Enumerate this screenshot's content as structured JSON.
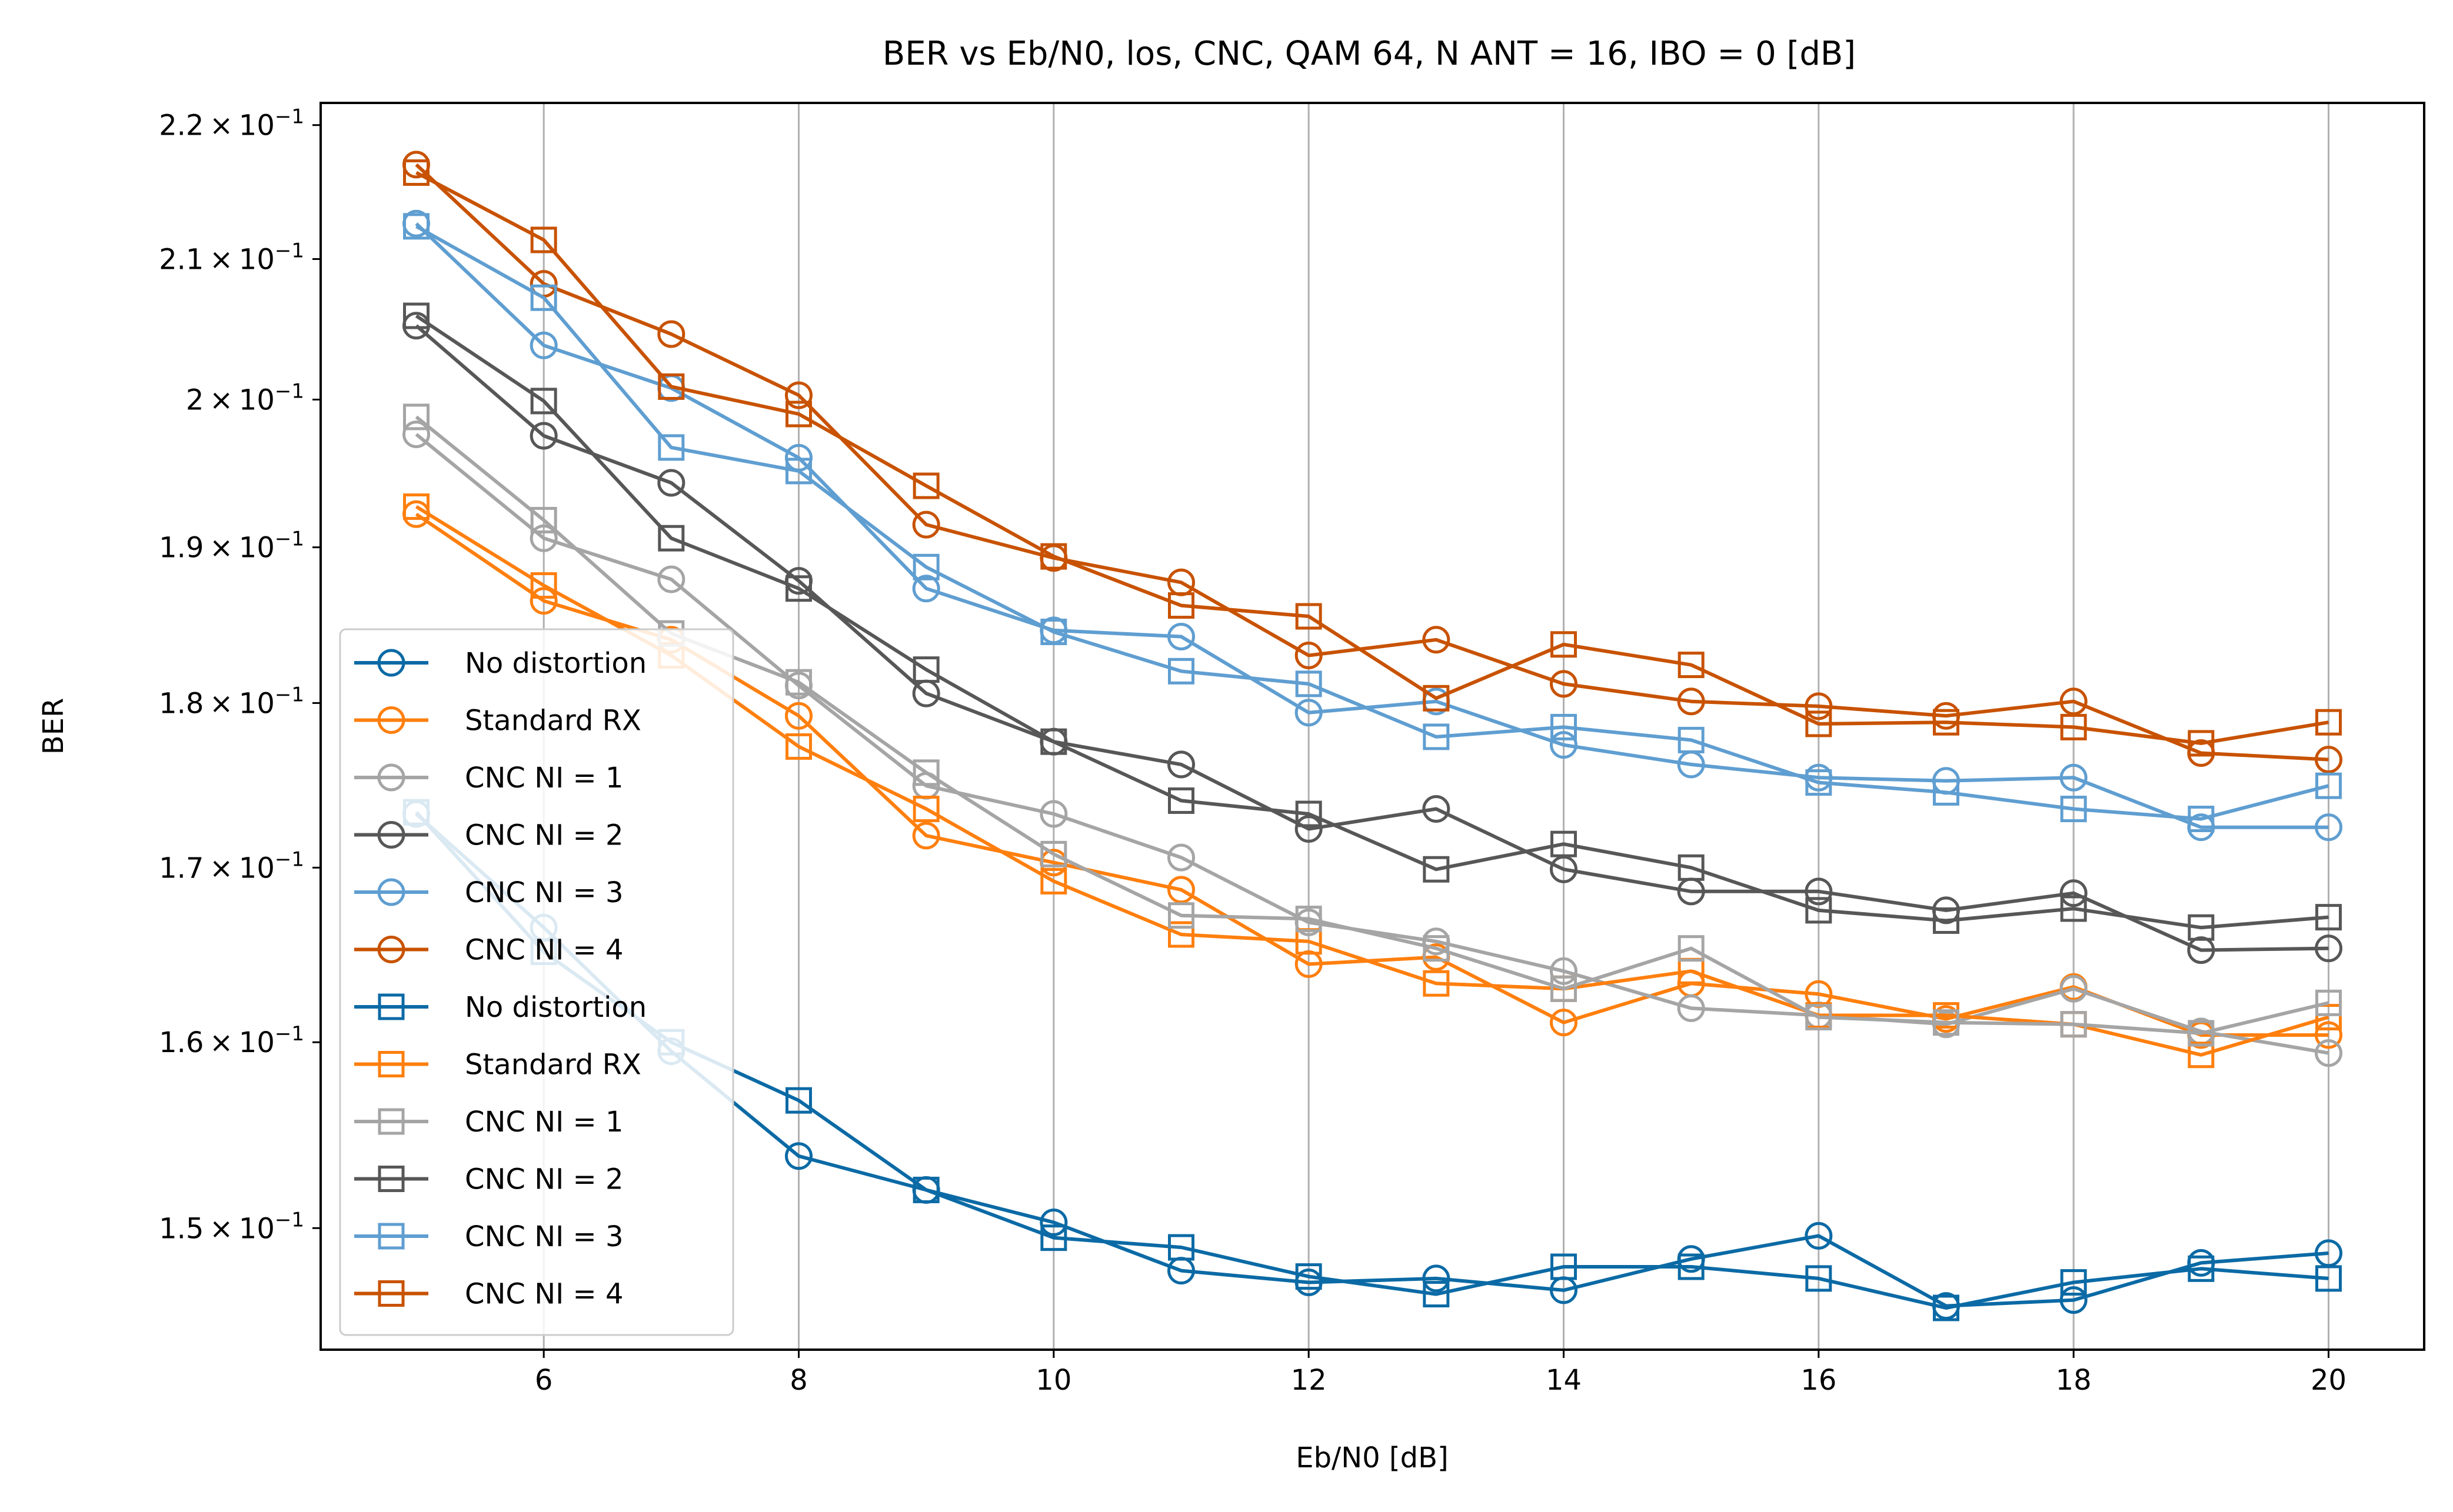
{
  "chart_data": {
    "type": "line",
    "title": "BER vs Eb/N0, los, CNC, QAM 64, N ANT = 16, IBO = 0 [dB]",
    "xlabel": "Eb/N0 [dB]",
    "ylabel": "BER",
    "y_scale": "log",
    "xlim": [
      4.25,
      20.75
    ],
    "ylim": [
      0.1438,
      0.2217
    ],
    "x_ticks": [
      6,
      8,
      10,
      12,
      14,
      16,
      18,
      20
    ],
    "x_tick_labels": [
      "6",
      "8",
      "10",
      "12",
      "14",
      "16",
      "18",
      "20"
    ],
    "y_ticks": [
      0.15,
      0.16,
      0.17,
      0.18,
      0.19,
      0.2,
      0.21,
      0.22
    ],
    "y_tick_labels": [
      {
        "mantissa": "1.5",
        "exp": "−1"
      },
      {
        "mantissa": "1.6",
        "exp": "−1"
      },
      {
        "mantissa": "1.7",
        "exp": "−1"
      },
      {
        "mantissa": "1.8",
        "exp": "−1"
      },
      {
        "mantissa": "1.9",
        "exp": "−1"
      },
      {
        "mantissa": "2",
        "exp": "−1"
      },
      {
        "mantissa": "2.1",
        "exp": "−1"
      },
      {
        "mantissa": "2.2",
        "exp": "−1"
      }
    ],
    "times_sign": "×",
    "base": "10",
    "grid": "vertical",
    "legend_position": "lower-left",
    "x": [
      5,
      6,
      7,
      8,
      9,
      10,
      11,
      12,
      13,
      14,
      15,
      16,
      17,
      18,
      19,
      20
    ],
    "series": [
      {
        "name": "No distortion",
        "marker": "circle",
        "color": "#0b6aa5",
        "values": [
          0.1732,
          0.1665,
          0.1595,
          0.1538,
          0.152,
          0.1503,
          0.1478,
          0.1472,
          0.1474,
          0.1468,
          0.1484,
          0.1496,
          0.146,
          0.1463,
          0.1482,
          0.1487
        ]
      },
      {
        "name": "Standard RX",
        "marker": "circle",
        "color": "#ff7f0e",
        "values": [
          0.1922,
          0.1865,
          0.184,
          0.1792,
          0.1719,
          0.1703,
          0.1687,
          0.1644,
          0.1648,
          0.1611,
          0.1633,
          0.1627,
          0.1613,
          0.1631,
          0.1604,
          0.1604
        ]
      },
      {
        "name": "CNC NI = 1",
        "marker": "circle",
        "color": "#a5a5a5",
        "values": [
          0.1976,
          0.1906,
          0.1879,
          0.1811,
          0.1749,
          0.1732,
          0.1706,
          0.1668,
          0.1657,
          0.164,
          0.1619,
          0.1615,
          0.161,
          0.163,
          0.1606,
          0.1594
        ]
      },
      {
        "name": "CNC NI = 2",
        "marker": "circle",
        "color": "#575757",
        "values": [
          0.2052,
          0.1975,
          0.1943,
          0.1878,
          0.1806,
          0.1776,
          0.1762,
          0.1723,
          0.1735,
          0.1699,
          0.1686,
          0.1686,
          0.1675,
          0.1685,
          0.1652,
          0.1653
        ]
      },
      {
        "name": "CNC NI = 3",
        "marker": "circle",
        "color": "#5f9ed1",
        "values": [
          0.2126,
          0.2038,
          0.2008,
          0.196,
          0.1873,
          0.1846,
          0.1842,
          0.1794,
          0.1801,
          0.1774,
          0.1762,
          0.1754,
          0.1752,
          0.1754,
          0.1724,
          0.1724
        ]
      },
      {
        "name": "CNC NI = 4",
        "marker": "circle",
        "color": "#c85200",
        "values": [
          0.217,
          0.2082,
          0.2046,
          0.2003,
          0.1915,
          0.1893,
          0.1877,
          0.183,
          0.184,
          0.1812,
          0.1801,
          0.1798,
          0.1792,
          0.1801,
          0.1769,
          0.1765
        ]
      },
      {
        "name": "No distortion",
        "marker": "square",
        "color": "#0b6aa5",
        "values": [
          0.1733,
          0.1651,
          0.16,
          0.1568,
          0.152,
          0.1495,
          0.149,
          0.1475,
          0.1466,
          0.148,
          0.148,
          0.1474,
          0.1459,
          0.1472,
          0.1479,
          0.1474
        ]
      },
      {
        "name": "Standard RX",
        "marker": "square",
        "color": "#ff7f0e",
        "values": [
          0.1927,
          0.1875,
          0.183,
          0.1773,
          0.1735,
          0.1692,
          0.1661,
          0.1657,
          0.1633,
          0.163,
          0.164,
          0.1615,
          0.1615,
          0.161,
          0.1593,
          0.1614
        ]
      },
      {
        "name": "CNC NI = 1",
        "marker": "square",
        "color": "#a5a5a5",
        "values": [
          0.1988,
          0.1918,
          0.1844,
          0.1813,
          0.1757,
          0.1708,
          0.1672,
          0.167,
          0.1653,
          0.163,
          0.1653,
          0.1614,
          0.1611,
          0.161,
          0.1605,
          0.1622
        ]
      },
      {
        "name": "CNC NI = 2",
        "marker": "square",
        "color": "#575757",
        "values": [
          0.2059,
          0.1999,
          0.1906,
          0.1873,
          0.1821,
          0.1776,
          0.174,
          0.1732,
          0.1699,
          0.1714,
          0.17,
          0.1675,
          0.1669,
          0.1676,
          0.1665,
          0.1671
        ]
      },
      {
        "name": "CNC NI = 3",
        "marker": "square",
        "color": "#5f9ed1",
        "values": [
          0.2124,
          0.2072,
          0.1967,
          0.1951,
          0.1887,
          0.1845,
          0.182,
          0.1812,
          0.1779,
          0.1785,
          0.1777,
          0.1751,
          0.1745,
          0.1735,
          0.1729,
          0.1749
        ]
      },
      {
        "name": "CNC NI = 4",
        "marker": "square",
        "color": "#c85200",
        "values": [
          0.2164,
          0.2114,
          0.2009,
          0.199,
          0.1941,
          0.1894,
          0.1862,
          0.1855,
          0.1803,
          0.1837,
          0.1824,
          0.1787,
          0.1788,
          0.1785,
          0.1775,
          0.1788
        ]
      }
    ]
  }
}
